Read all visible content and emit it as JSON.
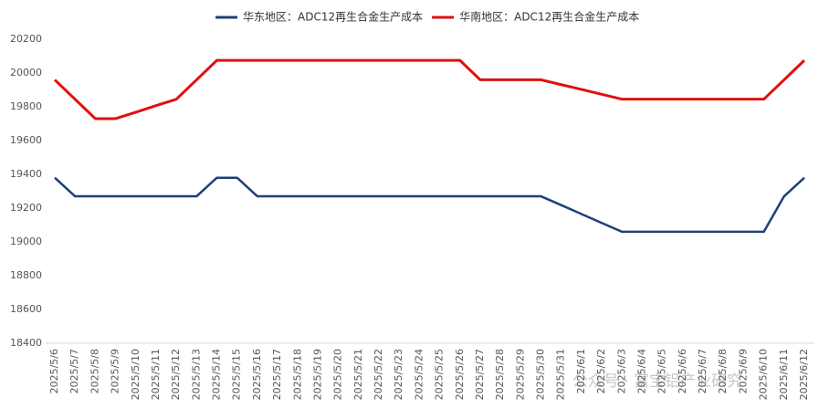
{
  "chart_data": {
    "type": "line",
    "categories": [
      "2025/5/6",
      "2025/5/7",
      "2025/5/8",
      "2025/5/9",
      "2025/5/10",
      "2025/5/11",
      "2025/5/12",
      "2025/5/13",
      "2025/5/14",
      "2025/5/15",
      "2025/5/16",
      "2025/5/17",
      "2025/5/18",
      "2025/5/19",
      "2025/5/20",
      "2025/5/21",
      "2025/5/22",
      "2025/5/23",
      "2025/5/24",
      "2025/5/25",
      "2025/5/26",
      "2025/5/27",
      "2025/5/28",
      "2025/5/29",
      "2025/5/30",
      "2025/5/31",
      "2025/6/1",
      "2025/6/2",
      "2025/6/3",
      "2025/6/4",
      "2025/6/5",
      "2025/6/6",
      "2025/6/7",
      "2025/6/8",
      "2025/6/9",
      "2025/6/10",
      "2025/6/11",
      "2025/6/12"
    ],
    "series": [
      {
        "name": "华东地区：ADC12再生合金生产成本",
        "color": "#1f3f7a",
        "values": [
          19380,
          19270,
          19270,
          19270,
          19270,
          19270,
          19270,
          19270,
          19380,
          19380,
          19270,
          19270,
          19270,
          19270,
          19270,
          19270,
          19270,
          19270,
          19270,
          19270,
          19270,
          19270,
          19270,
          19270,
          19270,
          19218,
          19165,
          19112,
          19060,
          19060,
          19060,
          19060,
          19060,
          19060,
          19060,
          19060,
          19270,
          19380
        ]
      },
      {
        "name": "华南地区：ADC12再生合金生产成本",
        "color": "#e01010",
        "values": [
          19960,
          19845,
          19730,
          19730,
          19768,
          19807,
          19845,
          19960,
          20075,
          20075,
          20075,
          20075,
          20075,
          20075,
          20075,
          20075,
          20075,
          20075,
          20075,
          20075,
          20075,
          19960,
          19960,
          19960,
          19960,
          19931,
          19903,
          19874,
          19845,
          19845,
          19845,
          19845,
          19845,
          19845,
          19845,
          19845,
          19960,
          20075
        ]
      }
    ],
    "ylim": [
      18400,
      20200
    ],
    "yticks": [
      18400,
      18600,
      18800,
      19000,
      19200,
      19400,
      19600,
      19800,
      20000,
      20200
    ],
    "legend": "top",
    "watermark": "公众号 · 富宝铝产业研究"
  }
}
